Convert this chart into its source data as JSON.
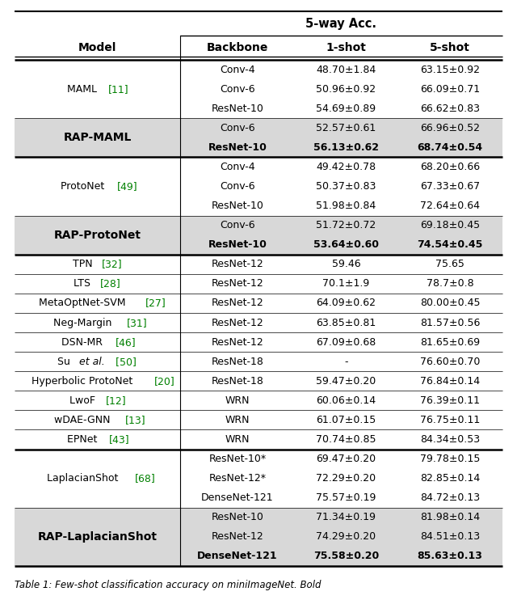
{
  "header": [
    "Model",
    "Backbone",
    "1-shot",
    "5-shot"
  ],
  "rows": [
    {
      "model": "MAML",
      "ref": "[11]",
      "italic_parts": [],
      "entries": [
        {
          "backbone": "Conv-4",
          "shot1": "48.70±1.84",
          "shot5": "63.15±0.92",
          "bold": false
        },
        {
          "backbone": "Conv-6",
          "shot1": "50.96±0.92",
          "shot5": "66.09±0.71",
          "bold": false
        },
        {
          "backbone": "ResNet-10",
          "shot1": "54.69±0.89",
          "shot5": "66.62±0.83",
          "bold": false
        }
      ],
      "highlight": false,
      "rap": false
    },
    {
      "model": "RAP-MAML",
      "ref": "",
      "italic_parts": [],
      "entries": [
        {
          "backbone": "Conv-6",
          "shot1": "52.57±0.61",
          "shot5": "66.96±0.52",
          "bold": false
        },
        {
          "backbone": "ResNet-10",
          "shot1": "56.13±0.62",
          "shot5": "68.74±0.54",
          "bold": true
        }
      ],
      "highlight": true,
      "rap": true
    },
    {
      "model": "ProtoNet",
      "ref": "[49]",
      "italic_parts": [],
      "entries": [
        {
          "backbone": "Conv-4",
          "shot1": "49.42±0.78",
          "shot5": "68.20±0.66",
          "bold": false
        },
        {
          "backbone": "Conv-6",
          "shot1": "50.37±0.83",
          "shot5": "67.33±0.67",
          "bold": false
        },
        {
          "backbone": "ResNet-10",
          "shot1": "51.98±0.84",
          "shot5": "72.64±0.64",
          "bold": false
        }
      ],
      "highlight": false,
      "rap": false
    },
    {
      "model": "RAP-ProtoNet",
      "ref": "",
      "italic_parts": [],
      "entries": [
        {
          "backbone": "Conv-6",
          "shot1": "51.72±0.72",
          "shot5": "69.18±0.45",
          "bold": false
        },
        {
          "backbone": "ResNet-10",
          "shot1": "53.64±0.60",
          "shot5": "74.54±0.45",
          "bold": true
        }
      ],
      "highlight": true,
      "rap": true
    },
    {
      "model": "TPN",
      "ref": "[32]",
      "italic_parts": [],
      "entries": [
        {
          "backbone": "ResNet-12",
          "shot1": "59.46",
          "shot5": "75.65",
          "bold": false
        }
      ],
      "highlight": false,
      "rap": false
    },
    {
      "model": "LTS",
      "ref": "[28]",
      "italic_parts": [],
      "entries": [
        {
          "backbone": "ResNet-12",
          "shot1": "70.1±1.9",
          "shot5": "78.7±0.8",
          "bold": false
        }
      ],
      "highlight": false,
      "rap": false
    },
    {
      "model": "MetaOptNet-SVM",
      "ref": "[27]",
      "italic_parts": [],
      "entries": [
        {
          "backbone": "ResNet-12",
          "shot1": "64.09±0.62",
          "shot5": "80.00±0.45",
          "bold": false
        }
      ],
      "highlight": false,
      "rap": false
    },
    {
      "model": "Neg-Margin",
      "ref": "[31]",
      "italic_parts": [],
      "entries": [
        {
          "backbone": "ResNet-12",
          "shot1": "63.85±0.81",
          "shot5": "81.57±0.56",
          "bold": false
        }
      ],
      "highlight": false,
      "rap": false
    },
    {
      "model": "DSN-MR",
      "ref": "[46]",
      "italic_parts": [],
      "entries": [
        {
          "backbone": "ResNet-12",
          "shot1": "67.09±0.68",
          "shot5": "81.65±0.69",
          "bold": false
        }
      ],
      "highlight": false,
      "rap": false
    },
    {
      "model": "Su ",
      "ref": "[50]",
      "italic_parts": [
        "et al."
      ],
      "model_parts": [
        [
          "Su ",
          false,
          false
        ],
        [
          "et al.",
          false,
          true
        ],
        [
          " ",
          false,
          false
        ]
      ],
      "entries": [
        {
          "backbone": "ResNet-18",
          "shot1": "-",
          "shot5": "76.60±0.70",
          "bold": false
        }
      ],
      "highlight": false,
      "rap": false
    },
    {
      "model": "Hyperbolic ProtoNet",
      "ref": "[20]",
      "italic_parts": [],
      "entries": [
        {
          "backbone": "ResNet-18",
          "shot1": "59.47±0.20",
          "shot5": "76.84±0.14",
          "bold": false
        }
      ],
      "highlight": false,
      "rap": false
    },
    {
      "model": "LwoF",
      "ref": "[12]",
      "italic_parts": [],
      "entries": [
        {
          "backbone": "WRN",
          "shot1": "60.06±0.14",
          "shot5": "76.39±0.11",
          "bold": false
        }
      ],
      "highlight": false,
      "rap": false
    },
    {
      "model": "wDAE-GNN",
      "ref": "[13]",
      "italic_parts": [],
      "entries": [
        {
          "backbone": "WRN",
          "shot1": "61.07±0.15",
          "shot5": "76.75±0.11",
          "bold": false
        }
      ],
      "highlight": false,
      "rap": false
    },
    {
      "model": "EPNet",
      "ref": "[43]",
      "italic_parts": [],
      "entries": [
        {
          "backbone": "WRN",
          "shot1": "70.74±0.85",
          "shot5": "84.34±0.53",
          "bold": false
        }
      ],
      "highlight": false,
      "rap": false
    },
    {
      "model": "LaplacianShot",
      "ref": "[68]",
      "italic_parts": [],
      "entries": [
        {
          "backbone": "ResNet-10*",
          "shot1": "69.47±0.20",
          "shot5": "79.78±0.15",
          "bold": false
        },
        {
          "backbone": "ResNet-12*",
          "shot1": "72.29±0.20",
          "shot5": "82.85±0.14",
          "bold": false
        },
        {
          "backbone": "DenseNet-121",
          "shot1": "75.57±0.19",
          "shot5": "84.72±0.13",
          "bold": false
        }
      ],
      "highlight": false,
      "rap": false
    },
    {
      "model": "RAP-LaplacianShot",
      "ref": "",
      "italic_parts": [],
      "entries": [
        {
          "backbone": "ResNet-10",
          "shot1": "71.34±0.19",
          "shot5": "81.98±0.14",
          "bold": false
        },
        {
          "backbone": "ResNet-12",
          "shot1": "74.29±0.20",
          "shot5": "84.51±0.13",
          "bold": false
        },
        {
          "backbone": "DenseNet-121",
          "shot1": "75.58±0.20",
          "shot5": "85.63±0.13",
          "bold": true
        }
      ],
      "highlight": true,
      "rap": true
    }
  ],
  "highlight_color": "#d8d8d8",
  "background_color": "#ffffff",
  "font_size": 9.0,
  "header_font_size": 10.0,
  "title_font_size": 10.5,
  "caption": "Table 1: Few-shot classification accuracy on miniImageNet. Bold"
}
